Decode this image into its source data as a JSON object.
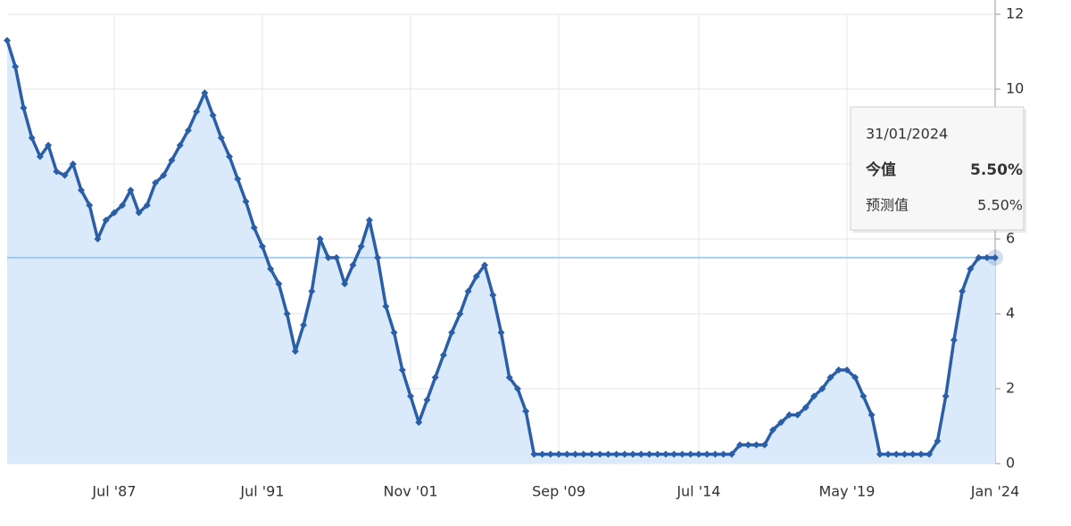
{
  "chart_data": {
    "type": "area-line",
    "categories": [
      null,
      null,
      null,
      null,
      null,
      null,
      null,
      null,
      null,
      null,
      null,
      null,
      null,
      "Jul '87",
      null,
      null,
      null,
      null,
      null,
      null,
      null,
      null,
      null,
      null,
      null,
      null,
      null,
      null,
      null,
      null,
      null,
      "Jul '91",
      null,
      null,
      null,
      null,
      null,
      null,
      null,
      null,
      null,
      null,
      null,
      null,
      null,
      null,
      null,
      null,
      null,
      "Nov '01",
      null,
      null,
      null,
      null,
      null,
      null,
      null,
      null,
      null,
      null,
      null,
      null,
      null,
      null,
      null,
      null,
      null,
      "Sep '09",
      null,
      null,
      null,
      null,
      null,
      null,
      null,
      null,
      null,
      null,
      null,
      null,
      null,
      null,
      null,
      null,
      "Jul '14",
      null,
      null,
      null,
      null,
      null,
      null,
      null,
      null,
      null,
      null,
      null,
      null,
      null,
      null,
      null,
      null,
      null,
      "May '19",
      null,
      null,
      null,
      null,
      null,
      null,
      null,
      null,
      null,
      null,
      null,
      null,
      null,
      null,
      null,
      null,
      null,
      "Jan '24"
    ],
    "values": [
      11.3,
      10.6,
      9.5,
      8.7,
      8.2,
      8.5,
      7.8,
      7.7,
      8.0,
      7.3,
      6.9,
      6.0,
      6.5,
      6.7,
      6.9,
      7.3,
      6.7,
      6.9,
      7.5,
      7.7,
      8.1,
      8.5,
      8.9,
      9.4,
      9.9,
      9.3,
      8.7,
      8.2,
      7.6,
      7.0,
      6.3,
      5.8,
      5.2,
      4.8,
      4.0,
      3.0,
      3.7,
      4.6,
      6.0,
      5.5,
      5.5,
      4.8,
      5.3,
      5.8,
      6.5,
      5.5,
      4.2,
      3.5,
      2.5,
      1.8,
      1.1,
      1.7,
      2.3,
      2.9,
      3.5,
      4.0,
      4.6,
      5.0,
      5.3,
      4.5,
      3.5,
      2.3,
      2.0,
      1.4,
      0.25,
      0.25,
      0.25,
      0.25,
      0.25,
      0.25,
      0.25,
      0.25,
      0.25,
      0.25,
      0.25,
      0.25,
      0.25,
      0.25,
      0.25,
      0.25,
      0.25,
      0.25,
      0.25,
      0.25,
      0.25,
      0.25,
      0.25,
      0.25,
      0.25,
      0.5,
      0.5,
      0.5,
      0.5,
      0.9,
      1.1,
      1.3,
      1.3,
      1.5,
      1.8,
      2.0,
      2.3,
      2.5,
      2.5,
      2.3,
      1.8,
      1.3,
      0.25,
      0.25,
      0.25,
      0.25,
      0.25,
      0.25,
      0.25,
      0.6,
      1.8,
      3.3,
      4.6,
      5.2,
      5.5,
      5.5,
      5.5
    ],
    "color": "#2a5fa8",
    "fill": "#dbeafb",
    "ylim": [
      0,
      12
    ],
    "yticks": [
      0,
      2,
      4,
      6,
      8,
      10,
      12
    ],
    "grid": true,
    "reference_line": 5.5,
    "reference_color": "#8ec0f0",
    "tooltip": {
      "date": "31/01/2024",
      "rows": [
        {
          "label": "今值",
          "value": "5.50%"
        },
        {
          "label": "预测值",
          "value": "5.50%"
        }
      ]
    }
  }
}
